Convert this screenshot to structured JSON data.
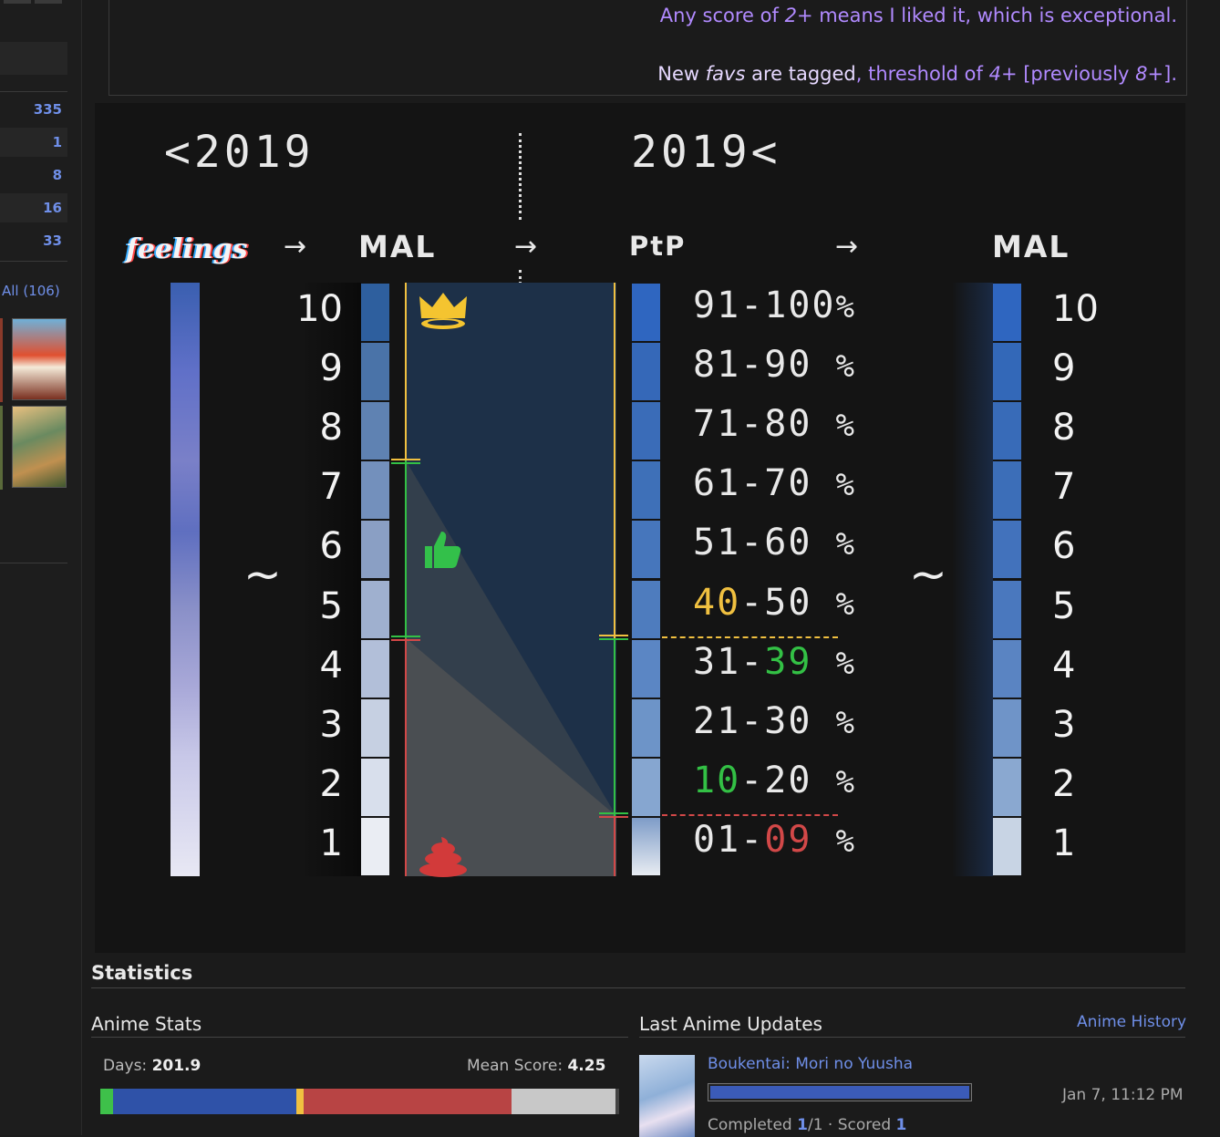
{
  "sidebar": {
    "counts": [
      "335",
      "1",
      "8",
      "16",
      "33"
    ],
    "all_link": "All (106)"
  },
  "note": {
    "line1_a": "Any score of ",
    "line1_b": "2+",
    "line1_c": " means I liked it, which is exceptional.",
    "line2_a": "New ",
    "line2_b": "favs",
    "line2_c": " are tagged",
    "line2_d": ", threshold of ",
    "line2_e": "4+",
    "line2_f": " [previously ",
    "line2_g": "8+",
    "line2_h": "]."
  },
  "graphic": {
    "before_label": "<2019",
    "after_label": "2019<",
    "feelings_label": "feelings",
    "arrow": "→",
    "mal_label": "MAL",
    "ptp_label": "PtP",
    "tilde": "~",
    "scores": [
      "10",
      "9",
      "8",
      "7",
      "6",
      "5",
      "4",
      "3",
      "2",
      "1"
    ],
    "ranges": [
      {
        "a": "91",
        "b": "100",
        "ac": "",
        "bc": ""
      },
      {
        "a": "81",
        "b": "90 ",
        "ac": "",
        "bc": ""
      },
      {
        "a": "71",
        "b": "80 ",
        "ac": "",
        "bc": ""
      },
      {
        "a": "61",
        "b": "70 ",
        "ac": "",
        "bc": ""
      },
      {
        "a": "51",
        "b": "60 ",
        "ac": "",
        "bc": ""
      },
      {
        "a": "40",
        "b": "50 ",
        "ac": "y",
        "bc": ""
      },
      {
        "a": "31",
        "b": "39 ",
        "ac": "",
        "bc": "g"
      },
      {
        "a": "21",
        "b": "30 ",
        "ac": "",
        "bc": ""
      },
      {
        "a": "10",
        "b": "20 ",
        "ac": "g",
        "bc": ""
      },
      {
        "a": "01",
        "b": "09 ",
        "ac": "",
        "bc": "r"
      }
    ],
    "dash": "-",
    "percent": "%",
    "crown_icon": "crown-icon",
    "thumbs_icon": "thumbs-up-icon",
    "poop_icon": "poop-icon",
    "colors": {
      "yellow": "#f0c040",
      "green": "#33c045",
      "red": "#d24848",
      "blue": "#2f66c0"
    }
  },
  "statistics": {
    "title": "Statistics",
    "anime_stats": "Anime Stats",
    "days_label": "Days: ",
    "days_value": "201.9",
    "mean_label": "Mean Score: ",
    "mean_value": "4.25",
    "last_updates": "Last Anime Updates",
    "history_link": "Anime History",
    "update_title": "Boukentai: Mori no Yuusha",
    "update_date": "Jan 7, 11:12 PM",
    "update_status_a": "Completed ",
    "update_status_b": "1",
    "update_status_c": "/1 · Scored ",
    "update_status_d": "1",
    "update_progress": 1.0
  }
}
